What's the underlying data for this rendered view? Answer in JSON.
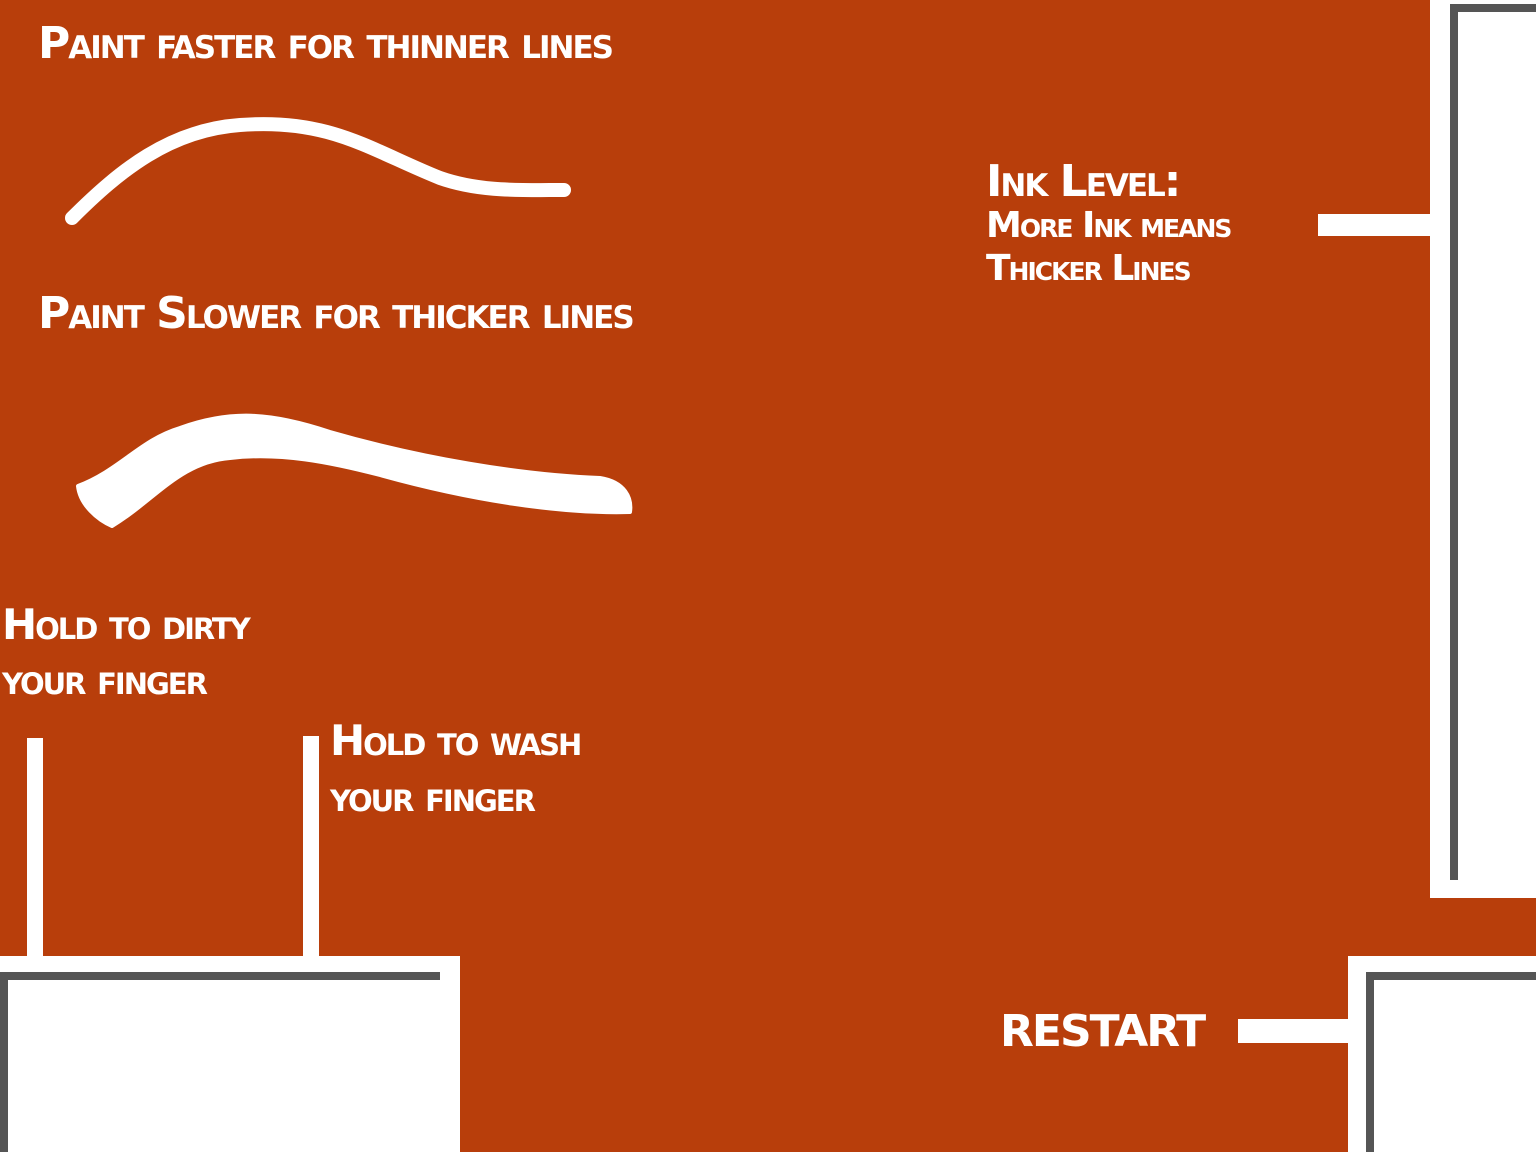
{
  "instructions": {
    "faster": "Paint faster for thinner lines",
    "slower": "Paint Slower for thicker lines"
  },
  "ink": {
    "title": "Ink Level:",
    "line1": "More Ink means",
    "line2": "Thicker Lines"
  },
  "dirty": {
    "line1": "Hold to dirty",
    "line2": "your finger"
  },
  "wash": {
    "line1": "Hold to wash",
    "line2": "your finger"
  },
  "restart_label": "RESTART",
  "colors": {
    "background": "#b83e0b",
    "ink": "#ffffff",
    "shadow": "#555555"
  }
}
